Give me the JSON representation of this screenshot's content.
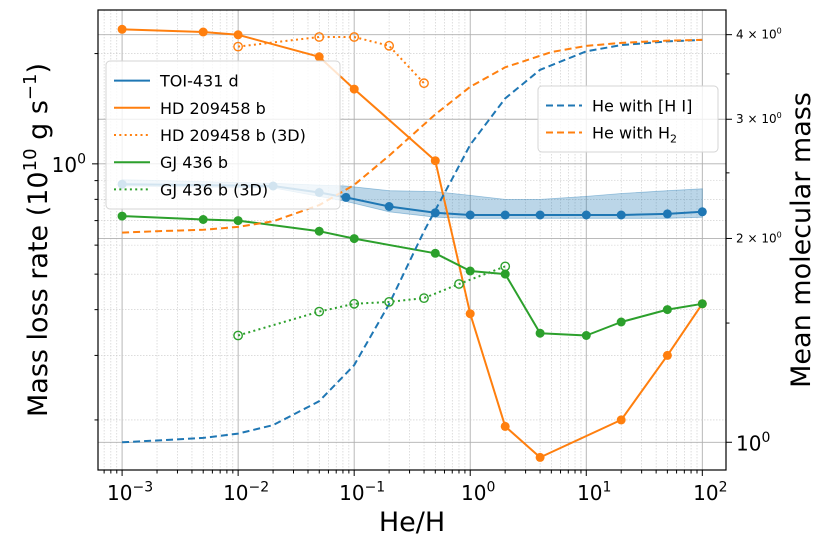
{
  "chart_data": {
    "type": "line",
    "xlabel": "He/H",
    "ylabel_left": "Mass loss rate (10",
    "ylabel_left_exp": "10",
    "ylabel_left_unit": " g s",
    "ylabel_left_unit_exp": "−1",
    "ylabel_right": "Mean molecular mass",
    "x_scale": "log",
    "xlim": [
      0.00062,
      160
    ],
    "ylim_left": [
      0.146,
      2.63
    ],
    "ylim_right": [
      0.91,
      4.35
    ],
    "x_ticks": [
      {
        "value": 0.001,
        "base": "10",
        "exp": "−3"
      },
      {
        "value": 0.01,
        "base": "10",
        "exp": "−2"
      },
      {
        "value": 0.1,
        "base": "10",
        "exp": "−1"
      },
      {
        "value": 1,
        "base": "10",
        "exp": "0"
      },
      {
        "value": 10,
        "base": "10",
        "exp": "1"
      },
      {
        "value": 100,
        "base": "10",
        "exp": "2"
      }
    ],
    "y_left_ticks": [
      {
        "value": 1.0,
        "label": "10",
        "exp": "0"
      }
    ],
    "y_right_ticks": [
      {
        "value": 1,
        "base": "10",
        "exp": "0",
        "small": false
      },
      {
        "value": 2,
        "base": "2 × 10",
        "exp": "0",
        "small": true
      },
      {
        "value": 3,
        "base": "3 × 10",
        "exp": "0",
        "small": true
      },
      {
        "value": 4,
        "base": "4 × 10",
        "exp": "0",
        "small": true
      }
    ],
    "grid": true,
    "legend_left_placement": "upper-left",
    "legend_right_placement": "upper-right",
    "legend_left": [
      {
        "label": "TOI-431 d",
        "color": "#1f77b4",
        "style": "solid"
      },
      {
        "label": "HD 209458 b",
        "color": "#ff7f0e",
        "style": "solid"
      },
      {
        "label": "HD 209458 b (3D)",
        "color": "#ff7f0e",
        "style": "dotted"
      },
      {
        "label": "GJ 436 b",
        "color": "#2ca02c",
        "style": "solid"
      },
      {
        "label": "GJ 436 b (3D)",
        "color": "#2ca02c",
        "style": "dotted"
      }
    ],
    "legend_right": [
      {
        "label": "He with [H I]",
        "color": "#1f77b4",
        "style": "dashed"
      },
      {
        "label": "He with H",
        "sub": "2",
        "color": "#ff7f0e",
        "style": "dashed"
      }
    ],
    "series": [
      {
        "name": "TOI-431 d",
        "color": "#1f77b4",
        "style": "solid",
        "marker": "filled",
        "axis": "left",
        "x": [
          0.001,
          0.02,
          0.05,
          0.085,
          0.2,
          0.5,
          1,
          2,
          4,
          10,
          20,
          50,
          100
        ],
        "y": [
          0.88,
          0.87,
          0.835,
          0.81,
          0.765,
          0.735,
          0.725,
          0.725,
          0.725,
          0.725,
          0.725,
          0.73,
          0.74
        ],
        "band_low": [
          0.87,
          0.86,
          0.815,
          0.79,
          0.74,
          0.715,
          0.71,
          0.71,
          0.71,
          0.71,
          0.71,
          0.71,
          0.715
        ],
        "band_high": [
          0.905,
          0.885,
          0.875,
          0.87,
          0.845,
          0.84,
          0.82,
          0.8,
          0.8,
          0.815,
          0.83,
          0.845,
          0.855
        ]
      },
      {
        "name": "HD 209458 b",
        "color": "#ff7f0e",
        "style": "solid",
        "marker": "filled",
        "axis": "left",
        "x": [
          0.001,
          0.005,
          0.01,
          0.05,
          0.1,
          0.5,
          1,
          2,
          4,
          20,
          50,
          100
        ],
        "y": [
          2.33,
          2.29,
          2.25,
          1.96,
          1.6,
          1.02,
          0.39,
          0.192,
          0.158,
          0.2,
          0.3,
          0.415
        ]
      },
      {
        "name": "HD 209458 b (3D)",
        "color": "#ff7f0e",
        "style": "dotted",
        "marker": "open",
        "axis": "left",
        "x": [
          0.01,
          0.05,
          0.1,
          0.2,
          0.4
        ],
        "y": [
          2.09,
          2.22,
          2.22,
          2.1,
          1.66
        ]
      },
      {
        "name": "GJ 436 b",
        "color": "#2ca02c",
        "style": "solid",
        "marker": "filled",
        "axis": "left",
        "x": [
          0.001,
          0.005,
          0.01,
          0.05,
          0.1,
          0.5,
          1,
          2,
          4,
          10,
          20,
          50,
          100
        ],
        "y": [
          0.72,
          0.705,
          0.7,
          0.655,
          0.625,
          0.57,
          0.51,
          0.5,
          0.345,
          0.34,
          0.37,
          0.4,
          0.415
        ]
      },
      {
        "name": "GJ 436 b (3D)",
        "color": "#2ca02c",
        "style": "dotted",
        "marker": "open",
        "axis": "left",
        "x": [
          0.01,
          0.05,
          0.1,
          0.2,
          0.4,
          0.8,
          2
        ],
        "y": [
          0.34,
          0.395,
          0.415,
          0.42,
          0.43,
          0.47,
          0.525
        ]
      },
      {
        "name": "He with [H I]",
        "color": "#1f77b4",
        "style": "dashed",
        "marker": "none",
        "axis": "right",
        "x": [
          0.001,
          0.002,
          0.005,
          0.01,
          0.02,
          0.05,
          0.1,
          0.2,
          0.4,
          0.7,
          1,
          2,
          4,
          10,
          20,
          50,
          100
        ],
        "y": [
          1.0,
          1.006,
          1.015,
          1.03,
          1.06,
          1.15,
          1.3,
          1.6,
          2.05,
          2.45,
          2.75,
          3.22,
          3.55,
          3.78,
          3.86,
          3.91,
          3.93
        ]
      },
      {
        "name": "He with H2",
        "color": "#ff7f0e",
        "style": "dashed",
        "marker": "none",
        "axis": "right",
        "x": [
          0.001,
          0.002,
          0.005,
          0.01,
          0.02,
          0.05,
          0.1,
          0.2,
          0.5,
          1,
          2,
          5,
          10,
          20,
          50,
          100
        ],
        "y": [
          2.04,
          2.05,
          2.06,
          2.08,
          2.12,
          2.24,
          2.4,
          2.65,
          3.05,
          3.35,
          3.58,
          3.77,
          3.85,
          3.89,
          3.92,
          3.93
        ]
      }
    ]
  }
}
